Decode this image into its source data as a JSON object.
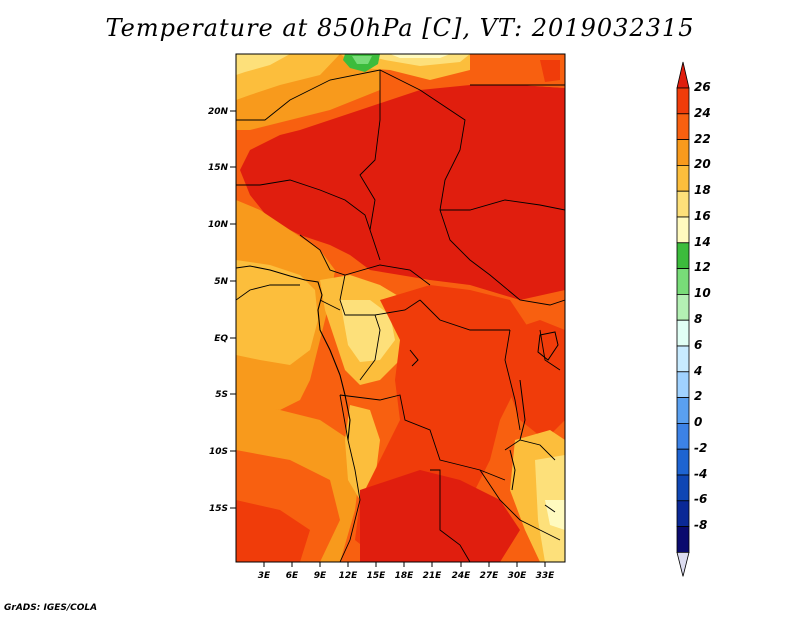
{
  "title": "Temperature at 850hPa [C], VT: 2019032315",
  "credit": "GrADS: IGES/COLA",
  "map": {
    "region": "Central Africa",
    "lat_labels": [
      "20N",
      "15N",
      "10N",
      "5N",
      "EQ",
      "5S",
      "10S",
      "15S"
    ],
    "lon_labels": [
      "3E",
      "6E",
      "9E",
      "12E",
      "15E",
      "18E",
      "21E",
      "24E",
      "27E",
      "30E",
      "33E"
    ]
  },
  "colorbar": {
    "labels": [
      "26",
      "24",
      "22",
      "20",
      "18",
      "16",
      "14",
      "12",
      "10",
      "8",
      "6",
      "4",
      "2",
      "0",
      "-2",
      "-4",
      "-6",
      "-8"
    ],
    "colors": [
      "#e01e0e",
      "#f03c0a",
      "#f86010",
      "#f89a1c",
      "#fcbe3c",
      "#fde07a",
      "#fffabf",
      "#3cbc3c",
      "#78dc78",
      "#b4f0b4",
      "#e1fff5",
      "#c8ebff",
      "#a0d2ff",
      "#5aa0f0",
      "#3c82e6",
      "#1e64d2",
      "#0f46b4",
      "#0a2896",
      "#0a0a6e",
      "#dcdcf0"
    ]
  }
}
